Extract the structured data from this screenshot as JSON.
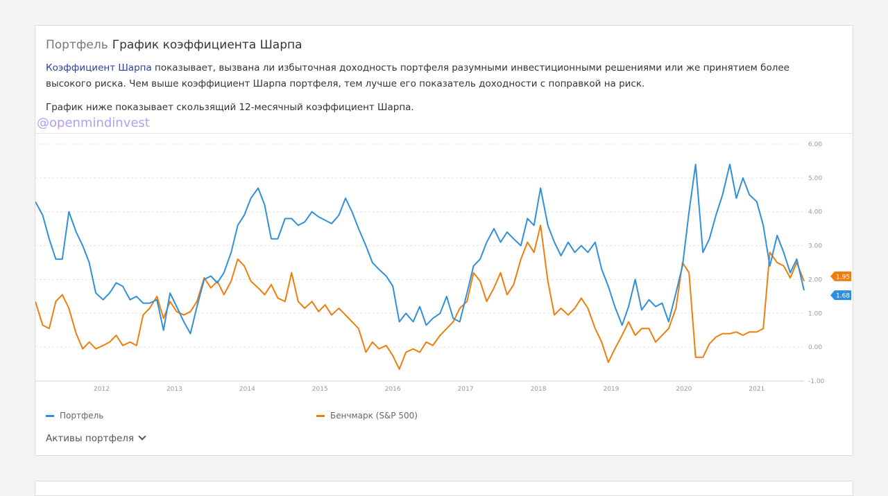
{
  "header": {
    "prefix": "Портфель",
    "title": "График коэффициента Шарпа"
  },
  "description": {
    "link": "Коэффициент Шарпа",
    "text": " показывает, вызвана ли избыточная доходность портфеля разумными инвестиционными решениями или же принятием более высокого риска. Чем выше коэффициент Шарпа портфеля, тем лучше его показатель доходности с поправкой на риск.",
    "note": "График ниже показывает скользящий 12-месячный коэффициент Шарпа."
  },
  "watermark": "@openmindinvest",
  "assets_toggle": "Активы портфеля",
  "chart_data": {
    "type": "line",
    "ylim": [
      -1,
      6
    ],
    "yticks": [
      "-1.00",
      "0.00",
      "1.00",
      "2.00",
      "3.00",
      "4.00",
      "5.00",
      "6.00"
    ],
    "xlim": [
      2011.09,
      2021.65
    ],
    "xticks": [
      "2012",
      "2013",
      "2014",
      "2015",
      "2016",
      "2017",
      "2018",
      "2019",
      "2020",
      "2021"
    ],
    "grid": true,
    "legend": "bottom",
    "x": [
      2011.09,
      2011.19,
      2011.28,
      2011.37,
      2011.46,
      2011.55,
      2011.65,
      2011.74,
      2011.83,
      2011.92,
      2012.02,
      2012.11,
      2012.2,
      2012.29,
      2012.39,
      2012.48,
      2012.57,
      2012.66,
      2012.76,
      2012.85,
      2012.94,
      2013.03,
      2013.13,
      2013.22,
      2013.31,
      2013.41,
      2013.5,
      2013.59,
      2013.68,
      2013.78,
      2013.87,
      2013.96,
      2014.05,
      2014.15,
      2014.24,
      2014.33,
      2014.42,
      2014.52,
      2014.61,
      2014.7,
      2014.79,
      2014.89,
      2014.98,
      2015.07,
      2015.16,
      2015.26,
      2015.35,
      2015.44,
      2015.53,
      2015.63,
      2015.72,
      2015.81,
      2015.91,
      2016.0,
      2016.09,
      2016.18,
      2016.28,
      2016.37,
      2016.46,
      2016.55,
      2016.65,
      2016.74,
      2016.83,
      2016.92,
      2017.02,
      2017.11,
      2017.2,
      2017.29,
      2017.39,
      2017.48,
      2017.57,
      2017.66,
      2017.76,
      2017.85,
      2017.94,
      2018.03,
      2018.13,
      2018.22,
      2018.31,
      2018.41,
      2018.5,
      2018.59,
      2018.68,
      2018.78,
      2018.87,
      2018.96,
      2019.05,
      2019.15,
      2019.24,
      2019.33,
      2019.42,
      2019.52,
      2019.61,
      2019.7,
      2019.79,
      2019.89,
      2019.98,
      2020.07,
      2020.16,
      2020.26,
      2020.35,
      2020.44,
      2020.53,
      2020.63,
      2020.72,
      2020.81,
      2020.9,
      2021.0,
      2021.09,
      2021.18,
      2021.28,
      2021.37,
      2021.46,
      2021.55,
      2021.65
    ],
    "series": [
      {
        "name": "Портфель",
        "color": "#2f8fd8",
        "last_label": "1.68",
        "values": [
          4.3,
          3.9,
          3.2,
          2.6,
          2.6,
          4.0,
          3.4,
          3.0,
          2.5,
          1.6,
          1.4,
          1.6,
          1.9,
          1.8,
          1.4,
          1.5,
          1.3,
          1.3,
          1.4,
          0.5,
          1.6,
          1.2,
          0.75,
          0.4,
          1.2,
          2.0,
          2.1,
          1.9,
          2.2,
          2.8,
          3.6,
          3.9,
          4.4,
          4.7,
          4.2,
          3.2,
          3.2,
          3.8,
          3.8,
          3.6,
          3.7,
          4.0,
          3.85,
          3.75,
          3.65,
          3.9,
          4.4,
          4.0,
          3.5,
          3.0,
          2.5,
          2.3,
          2.1,
          1.8,
          0.75,
          1.0,
          0.75,
          1.2,
          0.65,
          0.85,
          1.0,
          1.5,
          0.85,
          0.75,
          1.6,
          2.4,
          2.6,
          3.1,
          3.5,
          3.1,
          3.4,
          3.2,
          3.0,
          3.8,
          3.6,
          4.7,
          3.6,
          3.1,
          2.7,
          3.1,
          2.8,
          3.0,
          2.8,
          3.1,
          2.3,
          1.8,
          1.2,
          0.65,
          1.2,
          2.0,
          1.1,
          1.4,
          1.2,
          1.3,
          0.75,
          1.6,
          2.4,
          4.0,
          5.4,
          2.8,
          3.2,
          3.9,
          4.5,
          5.4,
          4.4,
          5.0,
          4.5,
          4.3,
          3.6,
          2.4,
          3.3,
          2.8,
          2.2,
          2.6,
          1.68
        ]
      },
      {
        "name": "Бенчмарк (S&P 500)",
        "color": "#ef7d0e",
        "last_label": "1.95",
        "values": [
          1.35,
          0.65,
          0.55,
          1.35,
          1.55,
          1.15,
          0.4,
          -0.05,
          0.15,
          -0.05,
          0.05,
          0.15,
          0.35,
          0.05,
          0.15,
          0.05,
          0.95,
          1.15,
          1.5,
          0.85,
          1.35,
          1.05,
          0.95,
          1.05,
          1.35,
          2.05,
          1.75,
          1.95,
          1.55,
          1.95,
          2.6,
          2.4,
          1.95,
          1.75,
          1.55,
          1.85,
          1.45,
          1.35,
          2.2,
          1.35,
          1.15,
          1.35,
          1.05,
          1.25,
          0.95,
          1.15,
          0.95,
          0.75,
          0.55,
          -0.15,
          0.15,
          -0.05,
          0.05,
          -0.25,
          -0.65,
          -0.15,
          -0.05,
          -0.15,
          0.15,
          0.05,
          0.35,
          0.55,
          0.75,
          1.15,
          1.35,
          2.2,
          1.95,
          1.35,
          1.75,
          2.2,
          1.55,
          1.85,
          2.6,
          3.1,
          2.8,
          3.6,
          1.95,
          0.95,
          1.15,
          0.95,
          1.15,
          1.45,
          1.15,
          0.55,
          0.15,
          -0.45,
          -0.05,
          0.35,
          0.75,
          0.35,
          0.55,
          0.55,
          0.15,
          0.35,
          0.55,
          1.15,
          2.5,
          2.2,
          -0.3,
          -0.3,
          0.1,
          0.3,
          0.4,
          0.4,
          0.45,
          0.35,
          0.45,
          0.45,
          0.55,
          2.8,
          2.5,
          2.4,
          2.05,
          2.5,
          1.95
        ]
      }
    ]
  }
}
